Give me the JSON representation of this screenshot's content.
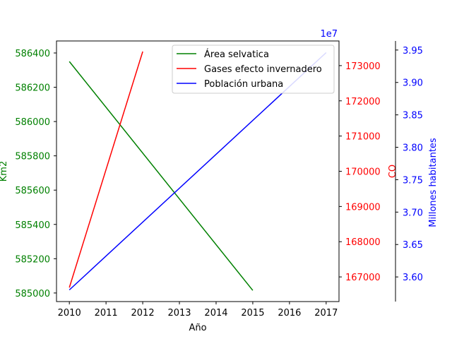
{
  "chart_data": {
    "type": "line",
    "x": [
      2010,
      2011,
      2012,
      2013,
      2014,
      2015,
      2016,
      2017
    ],
    "xlabel": "Año",
    "xlim": [
      2009.65,
      2017.35
    ],
    "axes": {
      "left": {
        "label": "Km2",
        "color": "#008000",
        "ylim": [
          584950,
          586470
        ],
        "ticks": [
          585000,
          585200,
          585400,
          585600,
          585800,
          586000,
          586200,
          586400
        ]
      },
      "right1": {
        "label": "CO",
        "color": "#ff0000",
        "ylim": [
          166300,
          173700
        ],
        "ticks": [
          167000,
          168000,
          169000,
          170000,
          171000,
          172000,
          173000
        ]
      },
      "right2": {
        "label": "Millones habitantes",
        "color": "#0000ff",
        "ylim": [
          35620000,
          39640000
        ],
        "ticks": [
          3.6,
          3.65,
          3.7,
          3.75,
          3.8,
          3.85,
          3.9,
          3.95
        ],
        "offset_text": "1e7"
      }
    },
    "series": [
      {
        "name": "Área selvatica",
        "axis": "left",
        "color": "#008000",
        "x": [
          2010,
          2015
        ],
        "y": [
          586350,
          585015
        ]
      },
      {
        "name": "Gases efecto invernadero",
        "axis": "right1",
        "color": "#ff0000",
        "x": [
          2010,
          2012
        ],
        "y": [
          166700,
          173400
        ]
      },
      {
        "name": "Población urbana",
        "axis": "right2",
        "color": "#0000ff",
        "x": [
          2010,
          2017
        ],
        "y": [
          35800000,
          39460000
        ]
      }
    ],
    "legend": "top-right",
    "grid": false
  }
}
